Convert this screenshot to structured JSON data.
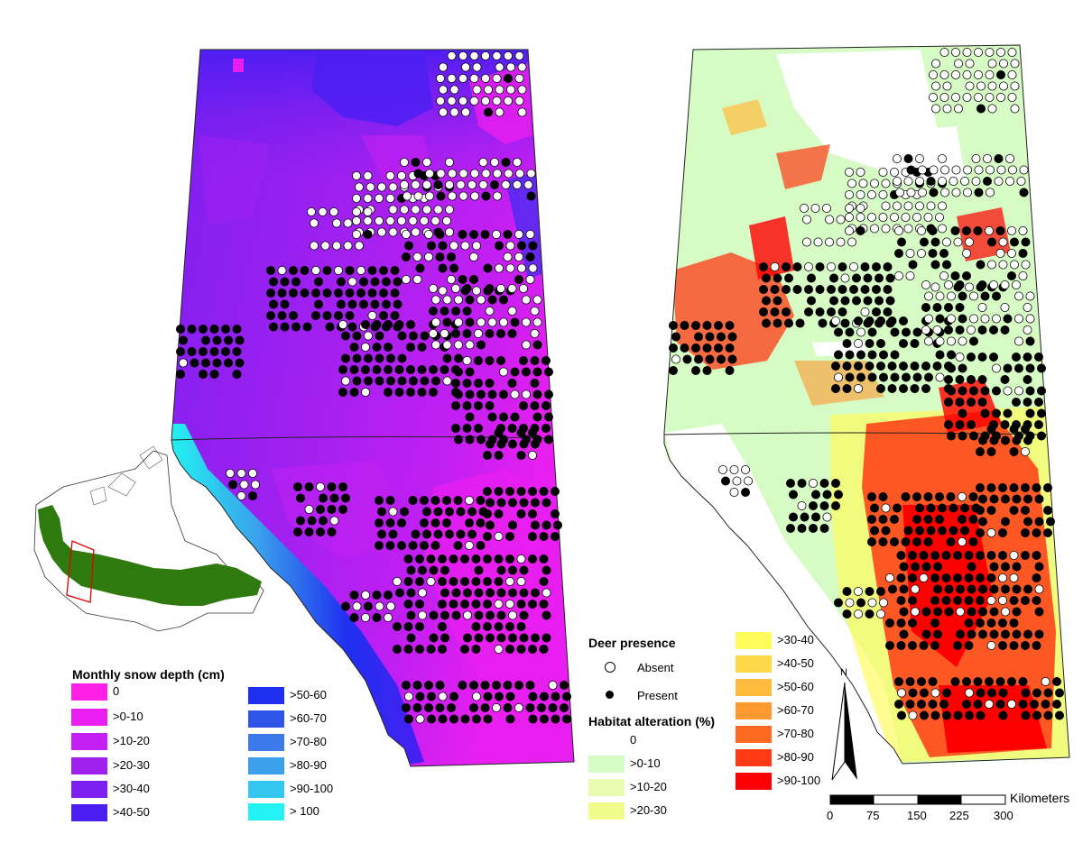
{
  "snow_legend": {
    "title": "Monthly snow depth (cm)",
    "classes": [
      {
        "label": "0",
        "color": "#ff1ee6"
      },
      {
        "label": ">0-10",
        "color": "#e81ff0"
      },
      {
        "label": ">10-20",
        "color": "#c41ff2"
      },
      {
        "label": ">20-30",
        "color": "#a020f0"
      },
      {
        "label": ">30-40",
        "color": "#7c1ff0"
      },
      {
        "label": ">40-50",
        "color": "#4a1ef2"
      },
      {
        "label": ">50-60",
        "color": "#1f2ff0"
      },
      {
        "label": ">60-70",
        "color": "#2e55e8"
      },
      {
        "label": ">70-80",
        "color": "#3b7ae8"
      },
      {
        "label": ">80-90",
        "color": "#3aa0ec"
      },
      {
        "label": ">90-100",
        "color": "#33c6f0"
      },
      {
        "label": "> 100",
        "color": "#22f2f2"
      }
    ]
  },
  "presence_legend": {
    "title": "Deer presence",
    "absent": "Absent",
    "present": "Present"
  },
  "habitat_legend": {
    "title": "Habitat alteration (%)",
    "classes": [
      {
        "label": "0",
        "color": "#ffffff"
      },
      {
        "label": ">0-10",
        "color": "#d7fbc4"
      },
      {
        "label": ">10-20",
        "color": "#e8fbb0"
      },
      {
        "label": ">20-30",
        "color": "#f2fc8c"
      },
      {
        "label": ">30-40",
        "color": "#fffb58"
      },
      {
        "label": ">40-50",
        "color": "#ffd84a"
      },
      {
        "label": ">50-60",
        "color": "#ffbc3e"
      },
      {
        "label": ">60-70",
        "color": "#ff9a30"
      },
      {
        "label": ">70-80",
        "color": "#ff6a22"
      },
      {
        "label": ">80-90",
        "color": "#ff3a14"
      },
      {
        "label": ">90-100",
        "color": "#ff0000"
      }
    ]
  },
  "north_arrow": "N",
  "scale_bar": {
    "unit": "Kilometers",
    "ticks": [
      "0",
      "75",
      "150",
      "225",
      "300"
    ]
  },
  "colors": {
    "inset_range": "#2f7a0f",
    "inset_study_box": "#e00000",
    "province_border": "#222222"
  }
}
